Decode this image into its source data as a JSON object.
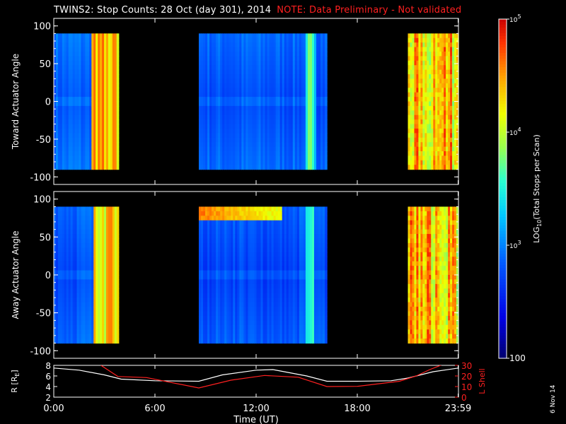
{
  "header": {
    "title": "TWINS2: Stop Counts: 28 Oct (day 301), 2014",
    "note": "NOTE: Data Preliminary - Not validated"
  },
  "footer": {
    "stamp": "6 Nov 14"
  },
  "colors": {
    "background": "#000000",
    "axes": "#ffffff",
    "lshell": "#ff2020",
    "r_line": "#ffffff",
    "note": "#ff2020"
  },
  "chart_data": [
    {
      "type": "heatmap",
      "ylabel": "Toward Actuator Angle",
      "ylim": [
        -110,
        110
      ],
      "yticks": [
        -100,
        -50,
        0,
        50,
        100
      ],
      "xlim": [
        0,
        24
      ],
      "data_extent_y": [
        -90,
        90
      ],
      "segments": [
        {
          "start": 0.0,
          "end": 3.85,
          "level": 2.85,
          "warm_band": [
            2.25,
            3.85
          ],
          "warm_level": 4.35
        },
        {
          "start": 8.6,
          "end": 16.2,
          "level": 2.8,
          "warm_band": [
            14.9,
            15.6
          ],
          "warm_level": 3.5
        },
        {
          "start": 21.0,
          "end": 24.0,
          "level": 4.3,
          "speckled": true
        }
      ]
    },
    {
      "type": "heatmap",
      "ylabel": "Away Actuator Angle",
      "ylim": [
        -110,
        110
      ],
      "yticks": [
        -100,
        -50,
        0,
        50,
        100
      ],
      "xlim": [
        0,
        24
      ],
      "data_extent_y": [
        -90,
        90
      ],
      "segments": [
        {
          "start": 0.0,
          "end": 3.85,
          "level": 2.8,
          "warm_band": [
            2.4,
            3.85
          ],
          "warm_level": 4.3
        },
        {
          "start": 8.6,
          "end": 16.2,
          "level": 2.75,
          "warm_band": [
            14.9,
            15.5
          ],
          "warm_level": 3.4,
          "hot_top": {
            "start": 8.6,
            "end": 13.6,
            "ymin": 70,
            "ymax": 90,
            "level": 4.6
          }
        },
        {
          "start": 21.0,
          "end": 24.0,
          "level": 4.3,
          "speckled": true
        }
      ]
    },
    {
      "type": "line",
      "xlabel": "Time (UT)",
      "xticks": [
        "0:00",
        "6:00",
        "12:00",
        "18:00",
        "23:59"
      ],
      "xtick_hours": [
        0,
        6,
        12,
        18,
        23.98
      ],
      "xlim": [
        0,
        24
      ],
      "left_axis": {
        "label": "R [R",
        "label_sub": "E",
        "label_end": "]",
        "ylim": [
          2,
          8
        ],
        "ticks": [
          2,
          4,
          6,
          8
        ]
      },
      "right_axis": {
        "label": "L Shell",
        "ylim": [
          0,
          30
        ],
        "ticks": [
          0,
          10,
          20,
          30
        ]
      },
      "series": [
        {
          "axis": "left",
          "color": "#ffffff",
          "x": [
            0,
            1.5,
            3,
            4,
            6,
            8.6,
            10,
            12,
            13,
            15,
            16.2,
            18,
            20,
            21,
            22.5,
            24
          ],
          "y": [
            7.5,
            7.1,
            6.2,
            5.4,
            5.1,
            5.0,
            6.2,
            7.1,
            7.2,
            6.0,
            5.0,
            5.0,
            5.1,
            5.6,
            6.8,
            7.5
          ]
        },
        {
          "axis": "right",
          "color": "#ff2020",
          "x": [
            2.8,
            3.8,
            5.5,
            8.6,
            10.5,
            12.5,
            14.5,
            16.2,
            18,
            20.5,
            21.5,
            22.3,
            23.1
          ],
          "y": [
            30,
            19.5,
            18.5,
            8.7,
            16,
            20.5,
            18.8,
            10,
            10.2,
            15,
            20,
            26,
            31
          ]
        }
      ]
    }
  ],
  "colorbar": {
    "label": "LOG",
    "label_sub": "10",
    "label_end": "(Total Stops per Scan)",
    "range": [
      2,
      5
    ],
    "ticks": [
      {
        "value": 5,
        "base": "10",
        "exp": "5"
      },
      {
        "value": 4,
        "base": "10",
        "exp": "4"
      },
      {
        "value": 3,
        "base": "10",
        "exp": "3"
      },
      {
        "value": 2,
        "text": "100"
      }
    ]
  }
}
